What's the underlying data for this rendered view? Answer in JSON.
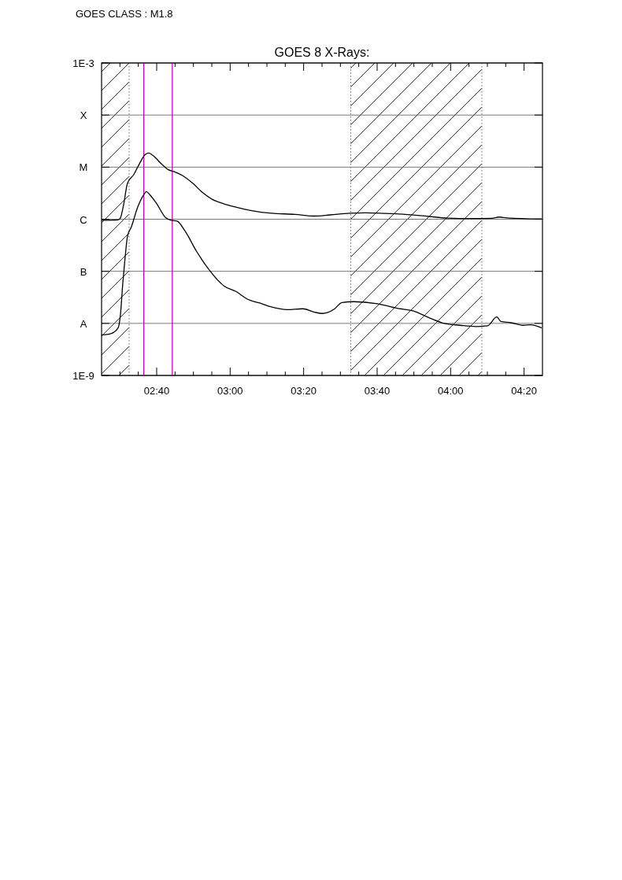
{
  "chart_data": {
    "type": "line",
    "title": "GOES 8 X-Rays:",
    "annotations": [
      "GOES CLASS : M1.8"
    ],
    "log": true,
    "grid": "y",
    "line_style": "solid",
    "marker": "none",
    "xlim": [
      2.4167,
      4.4167
    ],
    "xticks": [
      {
        "value": 2.5,
        "label": null
      },
      {
        "value": 2.5833,
        "label": null
      },
      {
        "value": 2.6667,
        "label": "02:40"
      },
      {
        "value": 2.75,
        "label": null
      },
      {
        "value": 2.8333,
        "label": null
      },
      {
        "value": 2.9167,
        "label": null
      },
      {
        "value": 3,
        "label": "03:00"
      },
      {
        "value": 3.0833,
        "label": null
      },
      {
        "value": 3.1667,
        "label": null
      },
      {
        "value": 3.25,
        "label": null
      },
      {
        "value": 3.3333,
        "label": "03:20"
      },
      {
        "value": 3.4167,
        "label": null
      },
      {
        "value": 3.5,
        "label": null
      },
      {
        "value": 3.5833,
        "label": null
      },
      {
        "value": 3.6667,
        "label": "03:40"
      },
      {
        "value": 3.75,
        "label": null
      },
      {
        "value": 3.8333,
        "label": null
      },
      {
        "value": 3.9167,
        "label": null
      },
      {
        "value": 4,
        "label": "04:00"
      },
      {
        "value": 4.0833,
        "label": null
      },
      {
        "value": 4.1667,
        "label": null
      },
      {
        "value": 4.25,
        "label": null
      },
      {
        "value": 4.3333,
        "label": "04:20"
      }
    ],
    "ylim": [
      1e-09,
      0.001
    ],
    "yticks": [
      {
        "value": 1e-09,
        "label": "1E-9"
      },
      {
        "value": 1e-08,
        "label": "A"
      },
      {
        "value": 1e-07,
        "label": "B"
      },
      {
        "value": 1e-06,
        "label": "C"
      },
      {
        "value": 1e-05,
        "label": "M"
      },
      {
        "value": 0.0001,
        "label": "X"
      },
      {
        "value": 0.001,
        "label": "1E-3"
      }
    ],
    "bands": [
      {
        "axis": "x",
        "from": 2.4167,
        "to": 2.5417
      },
      {
        "axis": "x",
        "from": 3.5467,
        "to": 4.1417
      }
    ],
    "ref_lines": [
      {
        "axis": "x",
        "value": 2.6083,
        "color": "#cc00cc"
      },
      {
        "axis": "x",
        "value": 2.7375,
        "color": "#cc00cc"
      }
    ],
    "series": [
      {
        "color": "#000000",
        "x": [
          2.4167,
          2.4917,
          2.5022,
          2.5167,
          2.5343,
          2.5628,
          2.5913,
          2.6127,
          2.6305,
          2.652,
          2.6877,
          2.7197,
          2.7482,
          2.7838,
          2.8302,
          2.8765,
          2.9193,
          2.9728,
          3.0263,
          3.0977,
          3.1867,
          3.2937,
          3.3828,
          3.4542,
          3.5432,
          3.6145,
          3.7037,
          3.7928,
          3.8997,
          3.9888,
          4.0958,
          4.185,
          4.2207,
          4.2562,
          4.4132
        ],
        "values": [
          9.5e-07,
          9.7e-07,
          1.06e-06,
          1.9e-06,
          4.9e-06,
          7.2e-06,
          1.22e-05,
          1.72e-05,
          1.87e-05,
          1.65e-05,
          1.16e-05,
          8.9e-06,
          8.1e-06,
          6.9e-06,
          4.9e-06,
          3.2e-06,
          2.4e-06,
          1.97e-06,
          1.71e-06,
          1.46e-06,
          1.3e-06,
          1.24e-06,
          1.15e-06,
          1.21e-06,
          1.3e-06,
          1.33e-06,
          1.29e-06,
          1.24e-06,
          1.13e-06,
          1.05e-06,
          1.03e-06,
          1.04e-06,
          1.1e-06,
          1.06e-06,
          1.01e-06
        ]
      },
      {
        "color": "#000000",
        "x": [
          2.4167,
          2.4559,
          2.4917,
          2.5022,
          2.513,
          2.5237,
          2.5343,
          2.5522,
          2.5807,
          2.6092,
          2.6198,
          2.6341,
          2.6698,
          2.7055,
          2.734,
          2.7589,
          2.7946,
          2.848,
          2.9015,
          2.9728,
          3.0263,
          3.0798,
          3.1333,
          3.1867,
          3.258,
          3.3293,
          3.3828,
          3.4185,
          3.472,
          3.5076,
          3.561,
          3.668,
          3.7572,
          3.8285,
          3.8997,
          3.971,
          4.0423,
          4.1137,
          4.1672,
          4.2098,
          4.2277,
          4.274,
          4.3275,
          4.3632,
          4.4132
        ],
        "values": [
          6e-09,
          6.3e-09,
          8.2e-09,
          1.46e-08,
          5.9e-08,
          1.87e-07,
          4.7e-07,
          7.2e-07,
          1.71e-06,
          3e-06,
          3.4e-06,
          3e-06,
          1.9e-06,
          1.09e-06,
          9.5e-07,
          9.2e-07,
          6e-07,
          2.4e-07,
          1.11e-07,
          5.2e-08,
          4.1e-08,
          2.9e-08,
          2.46e-08,
          2.07e-08,
          1.84e-08,
          1.91e-08,
          1.64e-08,
          1.55e-08,
          1.88e-08,
          2.52e-08,
          2.61e-08,
          2.38e-08,
          1.95e-08,
          1.74e-08,
          1.3e-08,
          1e-08,
          9.2e-09,
          8.7e-09,
          9e-09,
          1.33e-08,
          1.09e-08,
          1.03e-08,
          9.2e-09,
          9.4e-09,
          8.2e-09
        ]
      }
    ]
  }
}
